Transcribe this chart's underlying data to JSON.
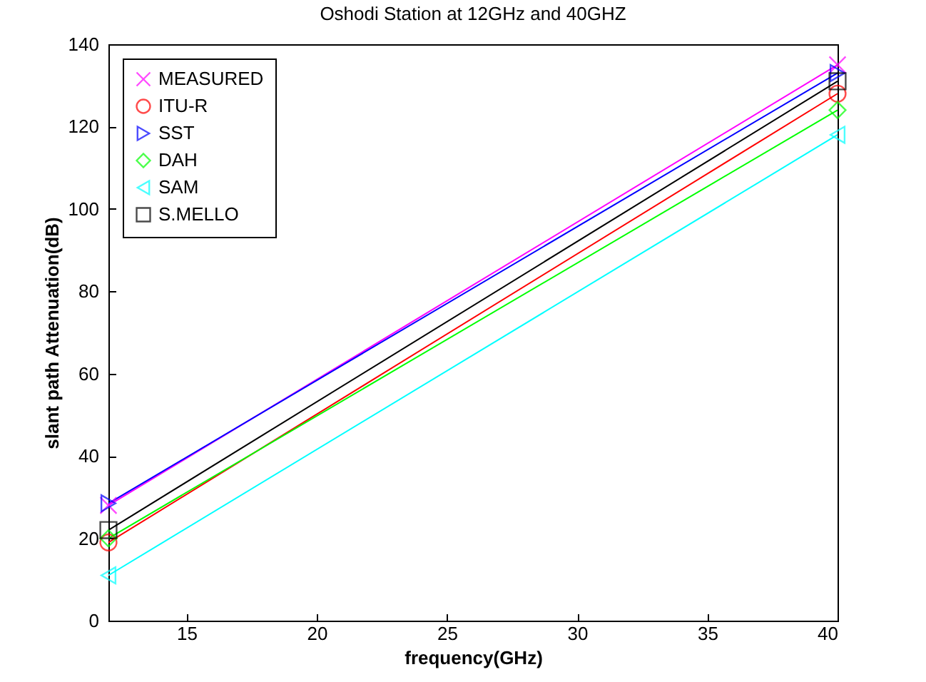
{
  "chart_data": {
    "type": "line",
    "title": "Oshodi Station at 12GHz and 40GHZ",
    "xlabel": "frequency(GHz)",
    "ylabel": "slant path Attenuation(dB)",
    "x": [
      12,
      40
    ],
    "xlim": [
      12,
      40
    ],
    "xticks": [
      15,
      20,
      25,
      30,
      35,
      40
    ],
    "ylim": [
      0,
      140
    ],
    "yticks": [
      0,
      20,
      40,
      60,
      80,
      100,
      120,
      140
    ],
    "grid": false,
    "legend": "top left",
    "series": [
      {
        "name": "MEASURED",
        "color": "#ff00ff",
        "marker": "cross",
        "values": [
          28,
          135
        ]
      },
      {
        "name": "ITU-R",
        "color": "#ff0000",
        "marker": "circle",
        "values": [
          19,
          128
        ]
      },
      {
        "name": "SST",
        "color": "#0000ff",
        "marker": "triangle-right",
        "values": [
          28.5,
          133
        ]
      },
      {
        "name": "DAH",
        "color": "#00ff00",
        "marker": "diamond",
        "values": [
          20,
          124
        ]
      },
      {
        "name": "SAM",
        "color": "#00ffff",
        "marker": "triangle-left",
        "values": [
          11,
          118
        ]
      },
      {
        "name": "S.MELLO",
        "color": "#000000",
        "marker": "square",
        "values": [
          22,
          131
        ]
      }
    ]
  }
}
